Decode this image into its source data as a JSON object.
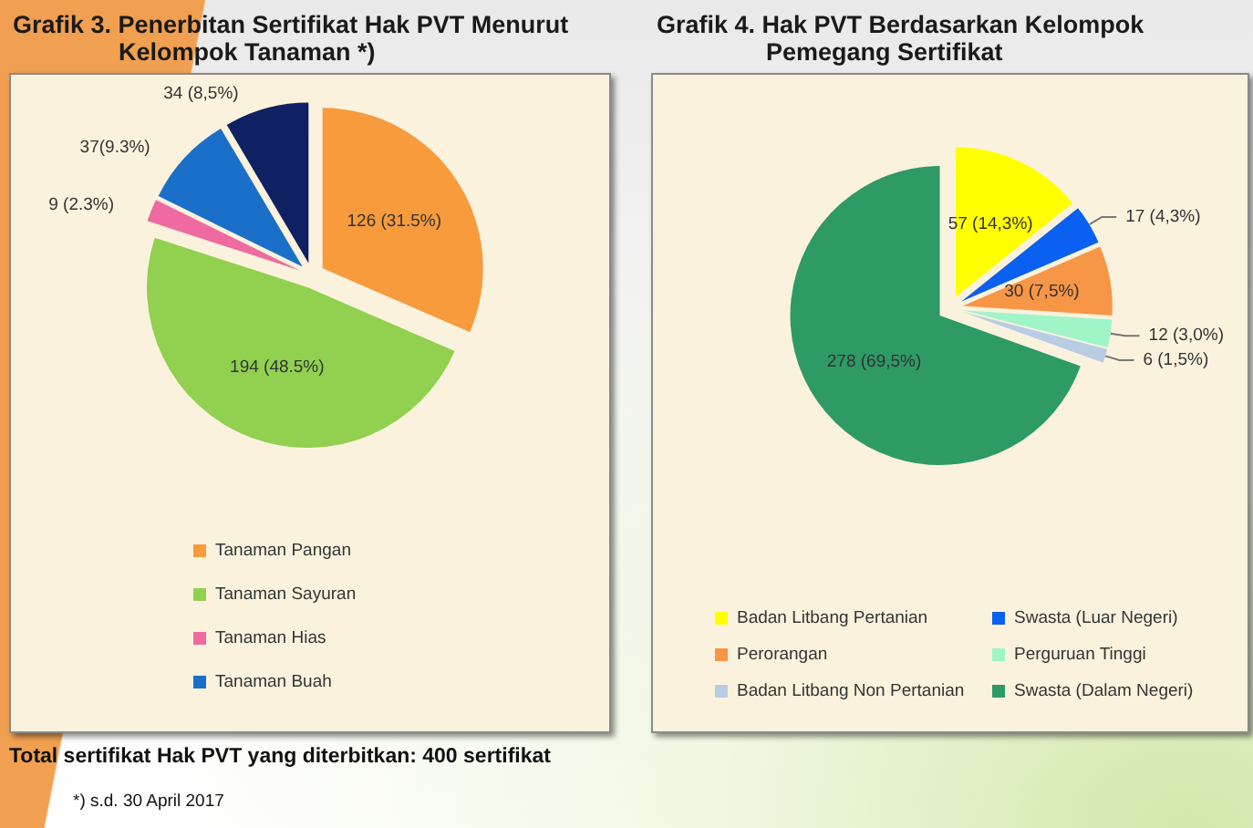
{
  "chart_data": [
    {
      "type": "pie",
      "title": "Grafik 3. Penerbitan Sertifikat Hak PVT Menurut Kelompok Tanaman *)",
      "categories": [
        "Tanaman Pangan",
        "Tanaman Sayuran",
        "Tanaman Hias",
        "Tanaman Buah",
        null
      ],
      "values": [
        126,
        194,
        9,
        37,
        34
      ],
      "value_labels": [
        "126 (31.5%)",
        "194 (48.5%)",
        "9 (2.3%)",
        "37(9.3%)",
        "34 (8,5%)"
      ],
      "colors": [
        "#f79b3c",
        "#92d050",
        "#ee6aa0",
        "#1a70c8",
        "#0f2163"
      ],
      "legend": "bottom",
      "annotations": [
        "Total sertifikat Hak PVT yang diterbitkan: 400 sertifikat",
        "*) s.d. 30 April 2017"
      ]
    },
    {
      "type": "pie",
      "title": "Grafik 4. Hak PVT Berdasarkan Kelompok Pemegang Sertifikat",
      "categories": [
        "Badan Litbang Pertanian",
        "Swasta (Luar Negeri)",
        "Perorangan",
        "Perguruan Tinggi",
        "Badan Litbang Non Pertanian",
        "Swasta (Dalam Negeri)"
      ],
      "values": [
        57,
        17,
        30,
        12,
        6,
        278
      ],
      "value_labels": [
        "57 (14,3%)",
        "17 (4,3%)",
        "30 (7,5%)",
        "12 (3,0%)",
        "6 (1,5%)",
        "278 (69,5%)"
      ],
      "colors": [
        "#ffff00",
        "#0a60f0",
        "#f79646",
        "#a0f5c8",
        "#b8cce4",
        "#2e9a66"
      ],
      "legend": "bottom"
    }
  ]
}
